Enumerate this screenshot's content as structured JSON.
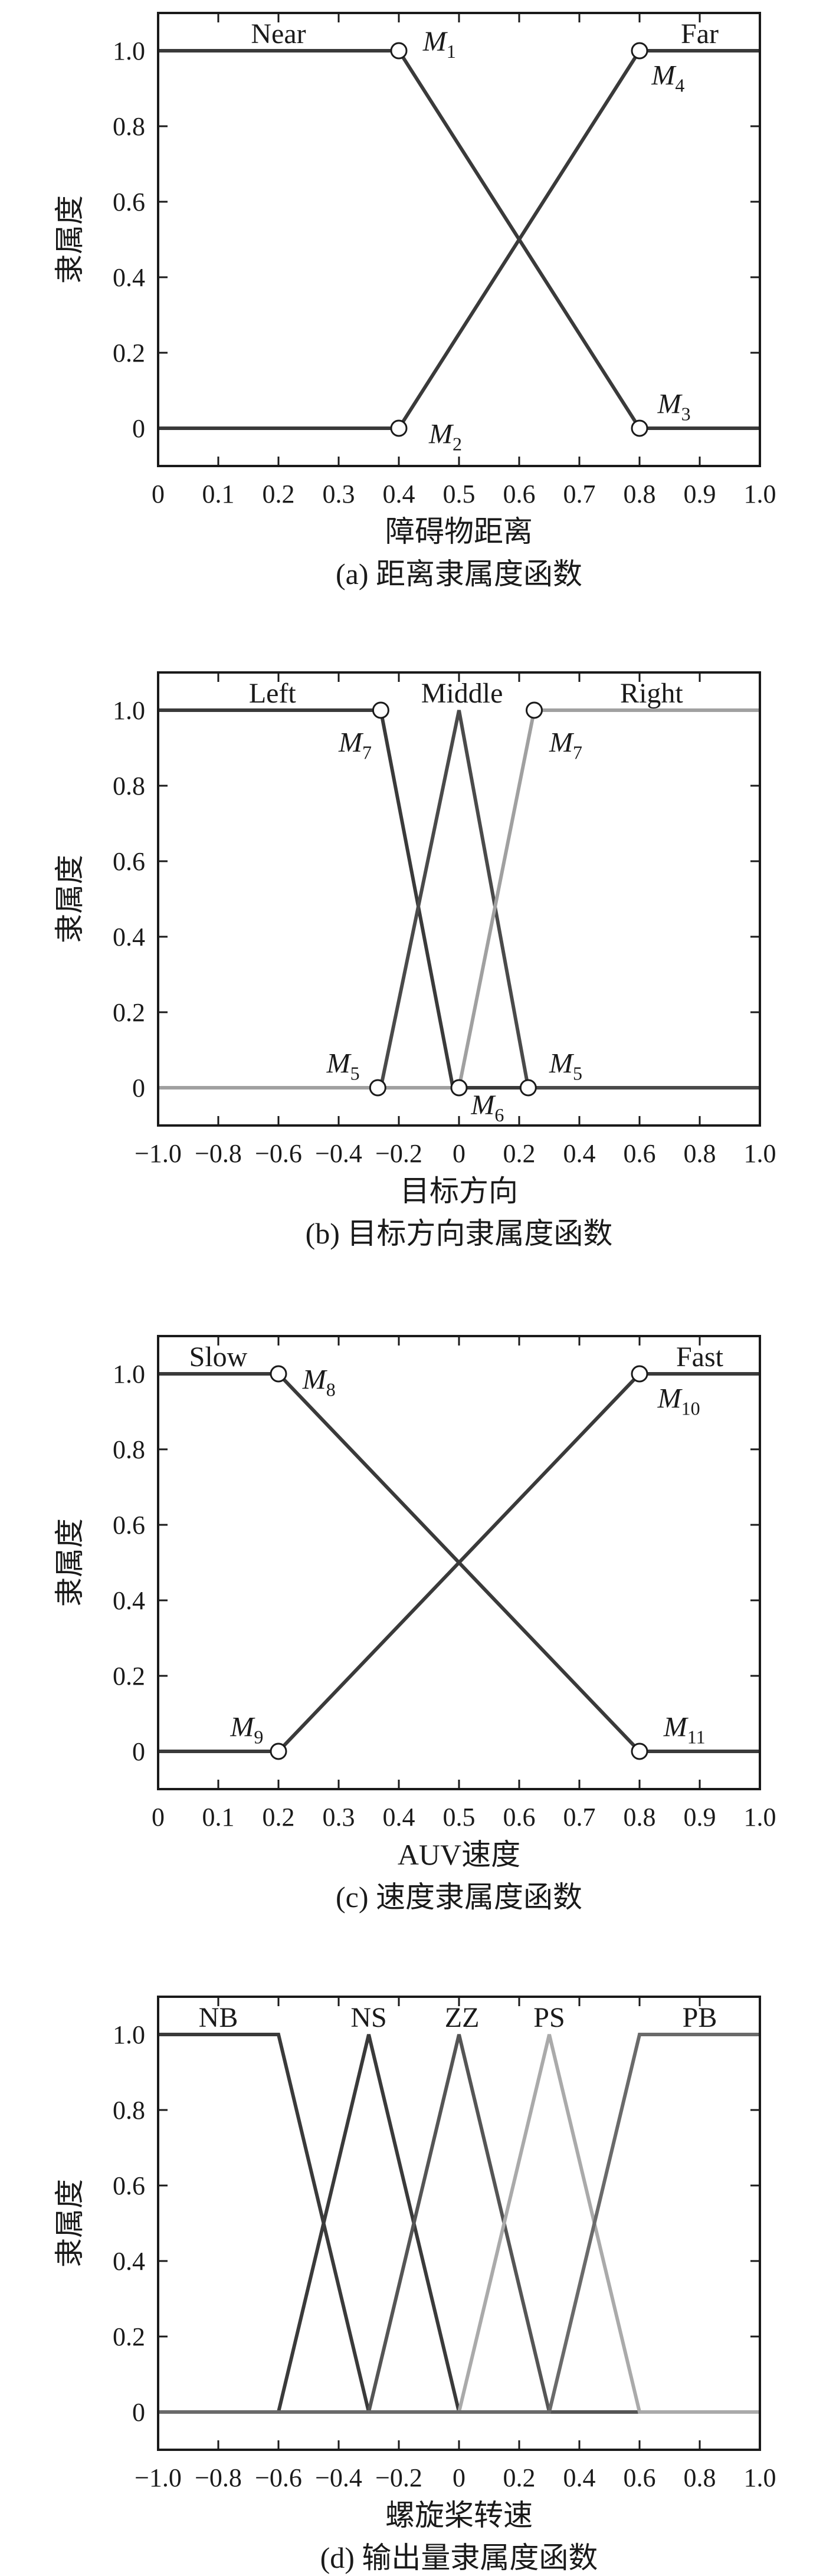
{
  "chart_data": [
    {
      "type": "line",
      "caption": "(a) 距离隶属度函数",
      "xlabel": "障碍物距离",
      "ylabel": "隶属度",
      "xlim": [
        0,
        1
      ],
      "ylim": [
        -0.1,
        1.1
      ],
      "xticks": [
        0,
        0.1,
        0.2,
        0.3,
        0.4,
        0.5,
        0.6,
        0.7,
        0.8,
        0.9,
        1.0
      ],
      "xtick_labels": [
        "0",
        "0.1",
        "0.2",
        "0.3",
        "0.4",
        "0.5",
        "0.6",
        "0.7",
        "0.8",
        "0.9",
        "1.0"
      ],
      "yticks": [
        0,
        0.2,
        0.4,
        0.6,
        0.8,
        1.0
      ],
      "ytick_labels": [
        "0",
        "0.2",
        "0.4",
        "0.6",
        "0.8",
        "1.0"
      ],
      "series": [
        {
          "name": "Near",
          "color": "#3a3a3a",
          "x": [
            0,
            0.4,
            0.8,
            1.0
          ],
          "y": [
            1,
            1,
            0,
            0
          ]
        },
        {
          "name": "Far",
          "color": "#3a3a3a",
          "x": [
            0,
            0.4,
            0.8,
            1.0
          ],
          "y": [
            0,
            0,
            1,
            1
          ]
        }
      ],
      "series_labels": [
        {
          "text": "Near",
          "x": 0.2,
          "y": 1.02
        },
        {
          "text": "Far",
          "x": 0.9,
          "y": 1.02
        }
      ],
      "points": [
        {
          "name": "M",
          "sub": "1",
          "x": 0.4,
          "y": 1,
          "lx": 0.44,
          "ly": 1.0
        },
        {
          "name": "M",
          "sub": "2",
          "x": 0.4,
          "y": 0,
          "lx": 0.45,
          "ly": -0.04
        },
        {
          "name": "M",
          "sub": "3",
          "x": 0.8,
          "y": 0,
          "lx": 0.83,
          "ly": 0.04
        },
        {
          "name": "M",
          "sub": "4",
          "x": 0.8,
          "y": 1,
          "lx": 0.82,
          "ly": 0.91
        }
      ]
    },
    {
      "type": "line",
      "caption": "(b) 目标方向隶属度函数",
      "xlabel": "目标方向",
      "ylabel": "隶属度",
      "xlim": [
        -1,
        1
      ],
      "ylim": [
        -0.1,
        1.1
      ],
      "xticks": [
        -1,
        -0.8,
        -0.6,
        -0.4,
        -0.2,
        0,
        0.2,
        0.4,
        0.6,
        0.8,
        1.0
      ],
      "xtick_labels": [
        "−1.0",
        "−0.8",
        "−0.6",
        "−0.4",
        "−0.2",
        "0",
        "0.2",
        "0.4",
        "0.6",
        "0.8",
        "1.0"
      ],
      "yticks": [
        0,
        0.2,
        0.4,
        0.6,
        0.8,
        1.0
      ],
      "ytick_labels": [
        "0",
        "0.2",
        "0.4",
        "0.6",
        "0.8",
        "1.0"
      ],
      "series": [
        {
          "name": "Left",
          "color": "#3a3a3a",
          "x": [
            -1,
            -0.26,
            -0.02,
            1.0
          ],
          "y": [
            1,
            1,
            0,
            0
          ]
        },
        {
          "name": "Middle",
          "color": "#4a4a4a",
          "x": [
            -1,
            -0.26,
            0,
            0.23,
            1.0
          ],
          "y": [
            0,
            0,
            1,
            0,
            0
          ]
        },
        {
          "name": "Right",
          "color": "#a0a0a0",
          "x": [
            -1,
            0,
            0.25,
            1.0
          ],
          "y": [
            0,
            0,
            1,
            1
          ]
        }
      ],
      "series_labels": [
        {
          "text": "Left",
          "x": -0.62,
          "y": 1.02
        },
        {
          "text": "Middle",
          "x": 0.01,
          "y": 1.02
        },
        {
          "text": "Right",
          "x": 0.64,
          "y": 1.02
        }
      ],
      "points": [
        {
          "name": "M",
          "sub": "7",
          "x": -0.26,
          "y": 1,
          "lx": -0.4,
          "ly": 0.89
        },
        {
          "name": "M",
          "sub": "7",
          "x": 0.25,
          "y": 1,
          "lx": 0.3,
          "ly": 0.89
        },
        {
          "name": "M",
          "sub": "5",
          "x": -0.27,
          "y": 0,
          "lx": -0.44,
          "ly": 0.04
        },
        {
          "name": "M",
          "sub": "5",
          "x": 0.23,
          "y": 0,
          "lx": 0.3,
          "ly": 0.04
        },
        {
          "name": "M",
          "sub": "6",
          "x": 0,
          "y": 0,
          "lx": 0.04,
          "ly": -0.07
        }
      ]
    },
    {
      "type": "line",
      "caption": "(c) 速度隶属度函数",
      "xlabel": "AUV速度",
      "ylabel": "隶属度",
      "xlim": [
        0,
        1
      ],
      "ylim": [
        -0.1,
        1.1
      ],
      "xticks": [
        0,
        0.1,
        0.2,
        0.3,
        0.4,
        0.5,
        0.6,
        0.7,
        0.8,
        0.9,
        1.0
      ],
      "xtick_labels": [
        "0",
        "0.1",
        "0.2",
        "0.3",
        "0.4",
        "0.5",
        "0.6",
        "0.7",
        "0.8",
        "0.9",
        "1.0"
      ],
      "yticks": [
        0,
        0.2,
        0.4,
        0.6,
        0.8,
        1.0
      ],
      "ytick_labels": [
        "0",
        "0.2",
        "0.4",
        "0.6",
        "0.8",
        "1.0"
      ],
      "series": [
        {
          "name": "Slow",
          "color": "#3a3a3a",
          "x": [
            0,
            0.2,
            0.8,
            1.0
          ],
          "y": [
            1,
            1,
            0,
            0
          ]
        },
        {
          "name": "Fast",
          "color": "#3a3a3a",
          "x": [
            0,
            0.2,
            0.8,
            1.0
          ],
          "y": [
            0,
            0,
            1,
            1
          ]
        }
      ],
      "series_labels": [
        {
          "text": "Slow",
          "x": 0.1,
          "y": 1.02
        },
        {
          "text": "Fast",
          "x": 0.9,
          "y": 1.02
        }
      ],
      "points": [
        {
          "name": "M",
          "sub": "8",
          "x": 0.2,
          "y": 1,
          "lx": 0.24,
          "ly": 0.96
        },
        {
          "name": "M",
          "sub": "9",
          "x": 0.2,
          "y": 0,
          "lx": 0.12,
          "ly": 0.04
        },
        {
          "name": "M",
          "sub": "10",
          "x": 0.8,
          "y": 1,
          "lx": 0.83,
          "ly": 0.91
        },
        {
          "name": "M",
          "sub": "11",
          "x": 0.8,
          "y": 0,
          "lx": 0.84,
          "ly": 0.04
        }
      ]
    },
    {
      "type": "line",
      "caption": "(d) 输出量隶属度函数",
      "xlabel": "螺旋桨转速",
      "ylabel": "隶属度",
      "xlim": [
        -1,
        1
      ],
      "ylim": [
        -0.1,
        1.1
      ],
      "xticks": [
        -1,
        -0.8,
        -0.6,
        -0.4,
        -0.2,
        0,
        0.2,
        0.4,
        0.6,
        0.8,
        1.0
      ],
      "xtick_labels": [
        "−1.0",
        "−0.8",
        "−0.6",
        "−0.4",
        "−0.2",
        "0",
        "0.2",
        "0.4",
        "0.6",
        "0.8",
        "1.0"
      ],
      "yticks": [
        0,
        0.2,
        0.4,
        0.6,
        0.8,
        1.0
      ],
      "ytick_labels": [
        "0",
        "0.2",
        "0.4",
        "0.6",
        "0.8",
        "1.0"
      ],
      "series": [
        {
          "name": "NB",
          "color": "#3a3a3a",
          "x": [
            -1,
            -0.6,
            -0.3,
            1.0
          ],
          "y": [
            1,
            1,
            0,
            0
          ]
        },
        {
          "name": "NS",
          "color": "#3a3a3a",
          "x": [
            -1,
            -0.6,
            -0.3,
            0,
            1.0
          ],
          "y": [
            0,
            0,
            1,
            0,
            0
          ]
        },
        {
          "name": "ZZ",
          "color": "#555555",
          "x": [
            -1,
            -0.3,
            0,
            0.3,
            1.0
          ],
          "y": [
            0,
            0,
            1,
            0,
            0
          ]
        },
        {
          "name": "PS",
          "color": "#aaaaaa",
          "x": [
            -1,
            0,
            0.3,
            0.6,
            1.0
          ],
          "y": [
            0,
            0,
            1,
            0,
            0
          ]
        },
        {
          "name": "PB",
          "color": "#6a6a6a",
          "x": [
            -1,
            0.3,
            0.6,
            1.0
          ],
          "y": [
            0,
            0,
            1,
            1
          ]
        }
      ],
      "series_labels": [
        {
          "text": "NB",
          "x": -0.8,
          "y": 1.02
        },
        {
          "text": "NS",
          "x": -0.3,
          "y": 1.02
        },
        {
          "text": "ZZ",
          "x": 0.01,
          "y": 1.02
        },
        {
          "text": "PS",
          "x": 0.3,
          "y": 1.02
        },
        {
          "text": "PB",
          "x": 0.8,
          "y": 1.02
        }
      ],
      "points": []
    }
  ]
}
